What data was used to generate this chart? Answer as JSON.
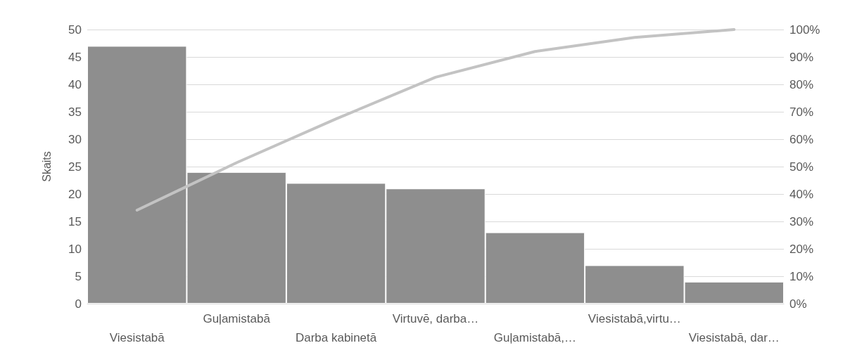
{
  "chart_data": {
    "type": "bar",
    "ylabel": "Skaits",
    "categories": [
      "Viesistabā",
      "Guļamistabā",
      "Darba kabinetā",
      "Virtuvē, darba…",
      "Guļamistabā,…",
      "Viesistabā,virtu…",
      "Viesistabā, dar…"
    ],
    "series": [
      {
        "color": "#8e8e8e",
        "values": [
          47,
          24,
          22,
          21,
          13,
          7,
          4
        ]
      },
      {
        "type": "line",
        "axis": "y2",
        "color": "#c3c3c3",
        "marker": "none",
        "values": [
          34.1,
          51.4,
          67.4,
          82.6,
          92.0,
          97.1,
          100
        ]
      }
    ],
    "ylim": [
      0,
      50
    ],
    "yticks": [
      0,
      5,
      10,
      15,
      20,
      25,
      30,
      35,
      40,
      45,
      50
    ],
    "y2lim": [
      0,
      100
    ],
    "y2ticks": [
      {
        "value": 0,
        "label": "0%"
      },
      {
        "value": 10,
        "label": "10%"
      },
      {
        "value": 20,
        "label": "20%"
      },
      {
        "value": 30,
        "label": "30%"
      },
      {
        "value": 40,
        "label": "40%"
      },
      {
        "value": 50,
        "label": "50%"
      },
      {
        "value": 60,
        "label": "60%"
      },
      {
        "value": 70,
        "label": "70%"
      },
      {
        "value": 80,
        "label": "80%"
      },
      {
        "value": 90,
        "label": "90%"
      },
      {
        "value": 100,
        "label": "100%"
      }
    ],
    "grid": "y"
  }
}
